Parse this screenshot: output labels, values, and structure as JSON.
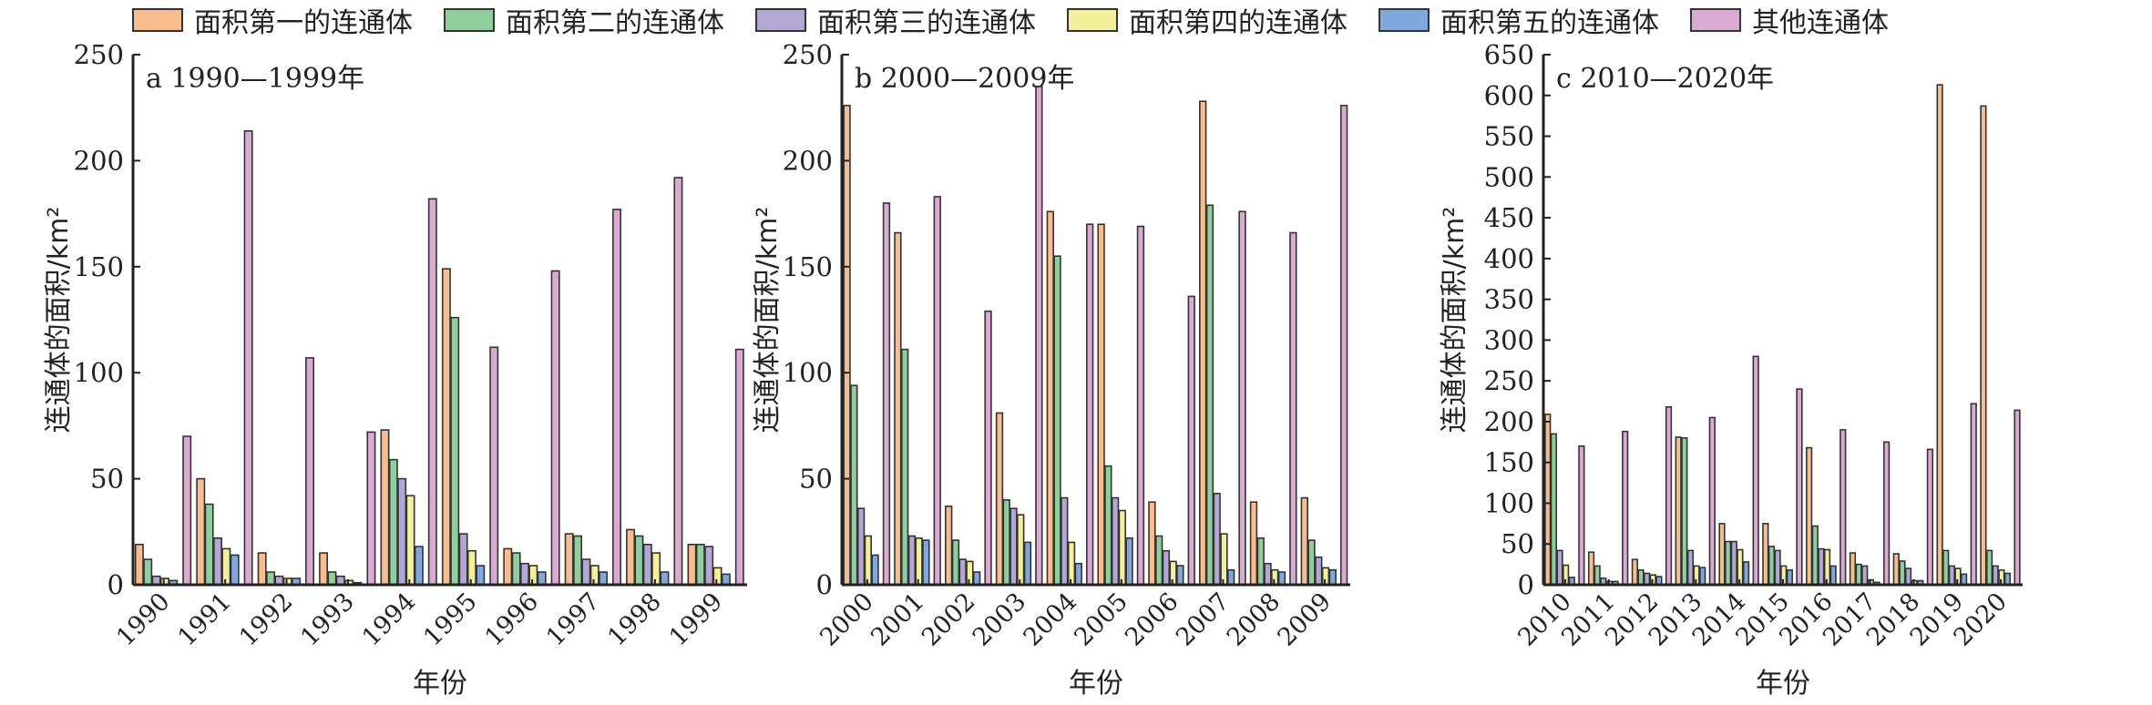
{
  "legend": [
    "面积第一的连通体",
    "面积第二的连通体",
    "面积第三的连通体",
    "面积第四的连通体",
    "面积第五的连通体",
    "其他连通体"
  ],
  "colors": [
    "#f8bd8f",
    "#8fce9d",
    "#b3a8d4",
    "#f4f09c",
    "#80a8dc",
    "#dbaad3"
  ],
  "chart_data": [
    {
      "type": "bar",
      "title": "a 1990—1999年",
      "xlabel": "年份",
      "ylabel": "连通体的面积/km²",
      "ylim": [
        0,
        250
      ],
      "yticks": [
        0,
        50,
        100,
        150,
        200,
        250
      ],
      "categories": [
        "1990",
        "1991",
        "1992",
        "1993",
        "1994",
        "1995",
        "1996",
        "1997",
        "1998",
        "1999"
      ],
      "series": [
        {
          "name": "面积第一的连通体",
          "values": [
            19,
            50,
            15,
            15,
            73,
            149,
            17,
            24,
            26,
            19
          ]
        },
        {
          "name": "面积第二的连通体",
          "values": [
            12,
            38,
            6,
            6,
            59,
            126,
            15,
            23,
            23,
            19
          ]
        },
        {
          "name": "面积第三的连通体",
          "values": [
            4,
            22,
            4,
            4,
            50,
            24,
            10,
            12,
            19,
            18
          ]
        },
        {
          "name": "面积第四的连通体",
          "values": [
            3,
            17,
            3,
            2,
            42,
            16,
            9,
            9,
            15,
            8
          ]
        },
        {
          "name": "面积第五的连通体",
          "values": [
            2,
            14,
            3,
            1,
            18,
            9,
            6,
            6,
            6,
            5
          ]
        },
        {
          "name": "其他连通体",
          "values": [
            70,
            214,
            107,
            72,
            182,
            112,
            148,
            177,
            192,
            111
          ]
        }
      ]
    },
    {
      "type": "bar",
      "title": "b 2000—2009年",
      "xlabel": "年份",
      "ylabel": "连通体的面积/km²",
      "ylim": [
        0,
        250
      ],
      "yticks": [
        0,
        50,
        100,
        150,
        200,
        250
      ],
      "categories": [
        "2000",
        "2001",
        "2002",
        "2003",
        "2004",
        "2005",
        "2006",
        "2007",
        "2008",
        "2009"
      ],
      "series": [
        {
          "name": "面积第一的连通体",
          "values": [
            226,
            166,
            37,
            81,
            176,
            170,
            39,
            228,
            39,
            41
          ]
        },
        {
          "name": "面积第二的连通体",
          "values": [
            94,
            111,
            21,
            40,
            155,
            56,
            23,
            179,
            22,
            21
          ]
        },
        {
          "name": "面积第三的连通体",
          "values": [
            36,
            23,
            12,
            36,
            41,
            41,
            16,
            43,
            10,
            13
          ]
        },
        {
          "name": "面积第四的连通体",
          "values": [
            23,
            22,
            11,
            33,
            20,
            35,
            11,
            24,
            7,
            8
          ]
        },
        {
          "name": "面积第五的连通体",
          "values": [
            14,
            21,
            6,
            20,
            10,
            22,
            9,
            7,
            6,
            7
          ]
        },
        {
          "name": "其他连通体",
          "values": [
            180,
            183,
            129,
            235,
            170,
            169,
            136,
            176,
            166,
            226
          ]
        }
      ]
    },
    {
      "type": "bar",
      "title": "c 2010—2020年",
      "xlabel": "年份",
      "ylabel": "连通体的面积/km²",
      "ylim": [
        0,
        650
      ],
      "yticks": [
        0,
        50,
        100,
        150,
        200,
        250,
        300,
        350,
        400,
        450,
        500,
        550,
        600,
        650
      ],
      "categories": [
        "2010",
        "2011",
        "2012",
        "2013",
        "2014",
        "2015",
        "2016",
        "2017",
        "2018",
        "2019",
        "2020"
      ],
      "series": [
        {
          "name": "面积第一的连通体",
          "values": [
            209,
            40,
            31,
            181,
            75,
            75,
            168,
            39,
            38,
            613,
            587
          ]
        },
        {
          "name": "面积第二的连通体",
          "values": [
            185,
            23,
            18,
            180,
            53,
            47,
            72,
            25,
            29,
            42,
            42
          ]
        },
        {
          "name": "面积第三的连通体",
          "values": [
            42,
            8,
            14,
            42,
            53,
            42,
            44,
            23,
            20,
            23,
            23
          ]
        },
        {
          "name": "面积第四的连通体",
          "values": [
            24,
            4,
            12,
            23,
            43,
            23,
            43,
            6,
            5,
            20,
            18
          ]
        },
        {
          "name": "面积第五的连通体",
          "values": [
            9,
            4,
            10,
            21,
            28,
            18,
            23,
            3,
            5,
            13,
            14
          ]
        },
        {
          "name": "其他连通体",
          "values": [
            170,
            188,
            218,
            205,
            280,
            240,
            190,
            175,
            166,
            222,
            214
          ]
        }
      ]
    }
  ]
}
